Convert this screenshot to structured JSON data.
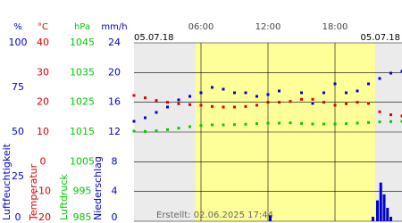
{
  "chart_data": {
    "type": "scatter",
    "date_left": "05.07.18",
    "date_right": "05.07.18",
    "footer": "Erstellt: 02.06.2025 17:44",
    "xlim": [
      0,
      24
    ],
    "xticks": [
      {
        "value": 6,
        "label": "06:00"
      },
      {
        "value": 12,
        "label": "12:00"
      },
      {
        "value": 18,
        "label": "18:00"
      }
    ],
    "daylight": [
      5.5,
      21.6
    ],
    "grid": true,
    "y_axes": [
      {
        "unit": "%",
        "label": "Luftfeuchtigkeit",
        "color": "#0000cc",
        "lim": [
          0,
          100
        ],
        "ticks": [
          0,
          25,
          50,
          75,
          100
        ]
      },
      {
        "unit": "°C",
        "label": "Temperatur",
        "color": "#dd0000",
        "lim": [
          -20,
          40
        ],
        "ticks": [
          -20,
          -10,
          0,
          10,
          20,
          30,
          40
        ]
      },
      {
        "unit": "hPa",
        "label": "Luftdruck",
        "color": "#00cc00",
        "lim": [
          985,
          1045
        ],
        "ticks": [
          985,
          995,
          1005,
          1015,
          1025,
          1035,
          1045
        ]
      },
      {
        "unit": "mm/h",
        "label": "Niederschlag",
        "color": "#0000cc",
        "lim": [
          0,
          24
        ],
        "ticks": [
          0,
          4,
          8,
          12,
          16,
          20,
          24
        ]
      }
    ],
    "x": [
      0,
      1,
      2,
      3,
      4,
      5,
      6,
      7,
      8,
      9,
      10,
      11,
      12,
      13,
      14,
      15,
      16,
      17,
      18,
      19,
      20,
      21,
      22,
      23,
      24
    ],
    "series": [
      {
        "axis": 2,
        "color": "#00cc00",
        "values": [
          1015.3,
          1015.2,
          1015.4,
          1015.8,
          1016.3,
          1016.8,
          1017.2,
          1017.4,
          1017.4,
          1017.5,
          1017.6,
          1017.8,
          1018,
          1018,
          1018.1,
          1017.9,
          1017.7,
          1017.7,
          1017.7,
          1017.8,
          1018,
          1018.2,
          1018.4,
          1018.5,
          1018.6
        ]
      },
      {
        "axis": 1,
        "color": "#dd0000",
        "values": [
          22.3,
          21.5,
          20.6,
          20,
          19.5,
          19.2,
          19,
          18.6,
          18.4,
          18.4,
          18.6,
          19,
          20,
          20,
          20.3,
          21,
          21,
          20,
          19,
          19.5,
          20,
          19.6,
          16.8,
          15.8,
          15.4
        ]
      },
      {
        "axis": 0,
        "color": "#0000cc",
        "values": [
          56,
          58,
          61,
          64,
          68,
          70,
          72,
          75,
          74,
          72,
          72,
          70,
          71,
          73,
          null,
          72,
          66,
          72,
          77,
          72,
          73,
          77,
          80,
          83,
          84
        ]
      }
    ],
    "precipitation": {
      "axis": 3,
      "color": "#0000cc",
      "x": [
        12.2,
        21.4,
        21.8,
        22.1,
        22.4,
        22.7,
        23
      ],
      "values": [
        0.8,
        0.6,
        2.8,
        5.2,
        3.6,
        1.8,
        0.6
      ]
    }
  }
}
